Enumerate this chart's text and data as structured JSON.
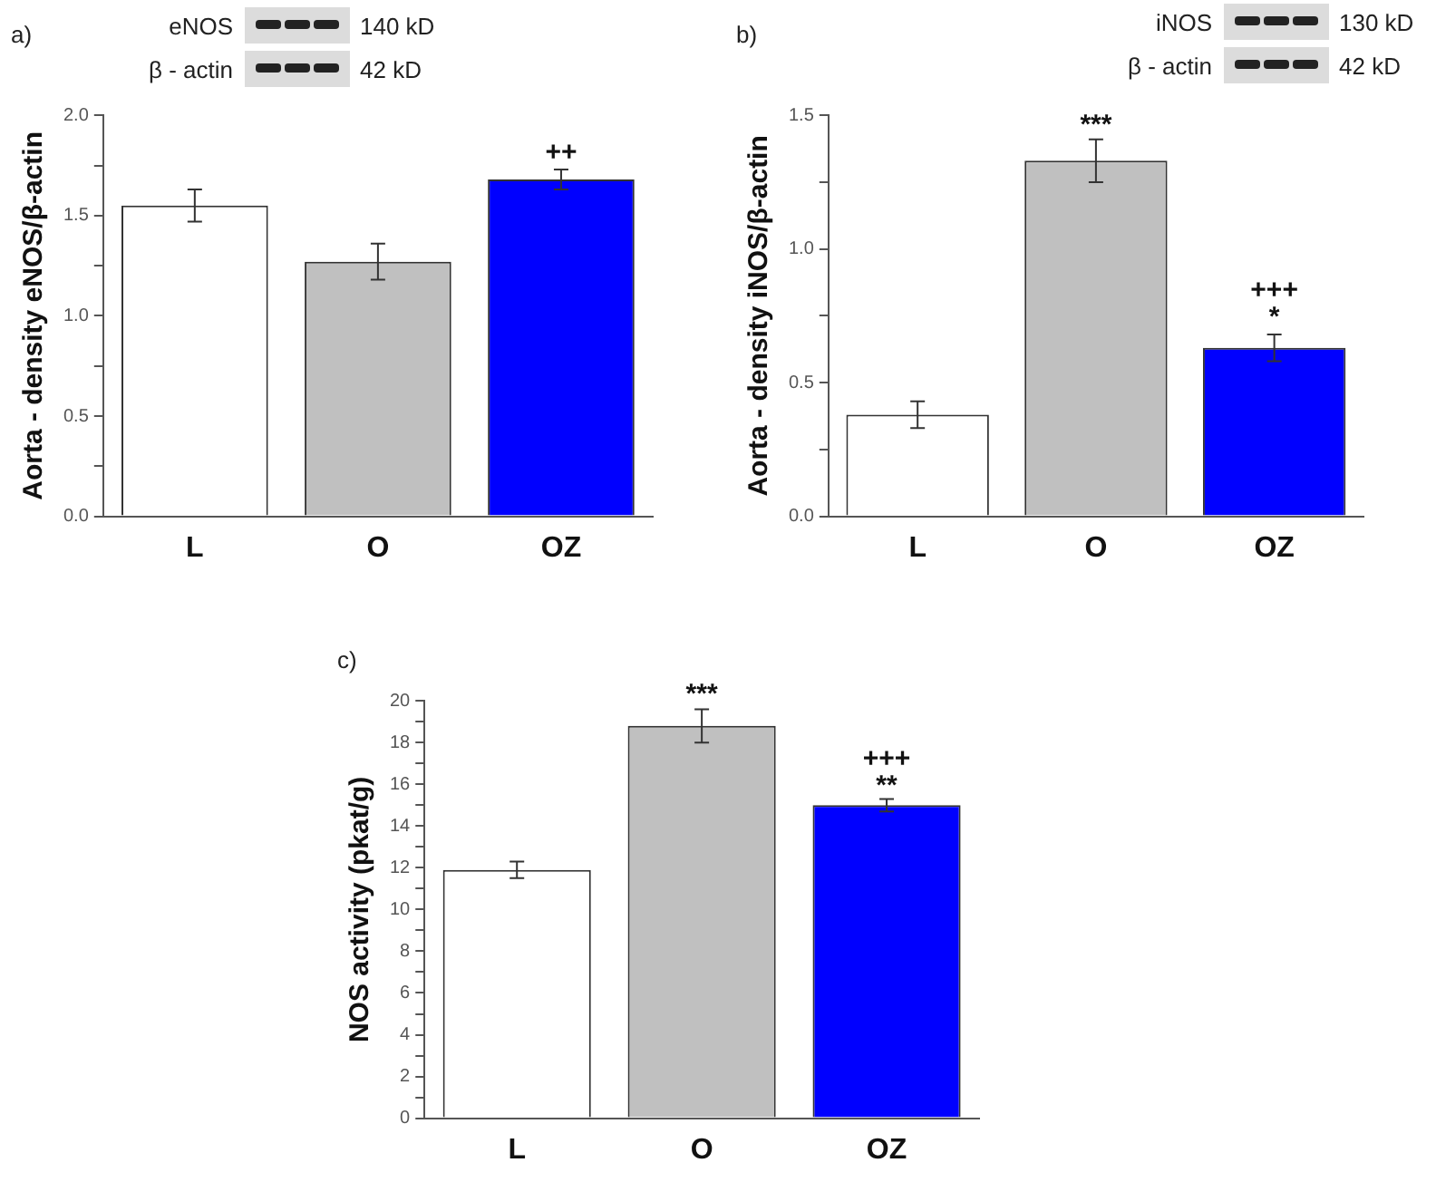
{
  "chart_data": [
    {
      "type": "bar",
      "title": "a)",
      "ylabel": "Aorta - density eNOS/β-actin",
      "categories": [
        "L",
        "O",
        "OZ"
      ],
      "values": [
        1.55,
        1.27,
        1.68
      ],
      "errors": [
        0.08,
        0.09,
        0.05
      ],
      "colors": [
        "#ffffff",
        "#c0c0c0",
        "#0000ff"
      ],
      "ylim": [
        0,
        2.0
      ],
      "yticks": [
        {
          "value": 0,
          "label": "0.0"
        },
        {
          "value": 0.25,
          "label": null
        },
        {
          "value": 0.5,
          "label": "0.5"
        },
        {
          "value": 0.75,
          "label": null
        },
        {
          "value": 1.0,
          "label": "1.0"
        },
        {
          "value": 1.25,
          "label": null
        },
        {
          "value": 1.5,
          "label": "1.5"
        },
        {
          "value": 1.75,
          "label": null
        },
        {
          "value": 2.0,
          "label": "2.0"
        }
      ],
      "grid": false,
      "legend": false,
      "annotations": [
        "eNOS",
        "140 kD",
        "β - actin",
        "42 kD",
        {
          "text": "++",
          "x": "OZ",
          "y": 1.77
        }
      ]
    },
    {
      "type": "bar",
      "title": "b)",
      "ylabel": "Aorta - density iNOS/β-actin",
      "categories": [
        "L",
        "O",
        "OZ"
      ],
      "values": [
        0.38,
        1.33,
        0.63
      ],
      "errors": [
        0.05,
        0.08,
        0.05
      ],
      "colors": [
        "#ffffff",
        "#c0c0c0",
        "#0000ff"
      ],
      "ylim": [
        0,
        1.5
      ],
      "yticks": [
        {
          "value": 0,
          "label": "0.0"
        },
        {
          "value": 0.25,
          "label": null
        },
        {
          "value": 0.5,
          "label": "0.5"
        },
        {
          "value": 0.75,
          "label": null
        },
        {
          "value": 1.0,
          "label": "1.0"
        },
        {
          "value": 1.25,
          "label": null
        },
        {
          "value": 1.5,
          "label": "1.5"
        }
      ],
      "grid": false,
      "legend": false,
      "annotations": [
        "iNOS",
        "130 kD",
        "β - actin",
        "42 kD",
        {
          "text": "***",
          "x": "O",
          "y": 1.43
        },
        {
          "text": "+++\n*",
          "x": "OZ",
          "y": 0.71
        }
      ]
    },
    {
      "type": "bar",
      "title": "c)",
      "ylabel": "NOS activity (pkat/g)",
      "categories": [
        "L",
        "O",
        "OZ"
      ],
      "values": [
        11.9,
        18.8,
        15.0
      ],
      "errors": [
        0.4,
        0.8,
        0.3
      ],
      "colors": [
        "#ffffff",
        "#c0c0c0",
        "#0000ff"
      ],
      "ylim": [
        0,
        20
      ],
      "yticks": [
        0,
        {
          "value": 1,
          "label": null
        },
        2,
        {
          "value": 3,
          "label": null
        },
        4,
        {
          "value": 5,
          "label": null
        },
        6,
        {
          "value": 7,
          "label": null
        },
        8,
        {
          "value": 9,
          "label": null
        },
        10,
        {
          "value": 11,
          "label": null
        },
        12,
        {
          "value": 13,
          "label": null
        },
        14,
        {
          "value": 15,
          "label": null
        },
        16,
        {
          "value": 17,
          "label": null
        },
        18,
        {
          "value": 19,
          "label": null
        },
        20
      ],
      "grid": false,
      "legend": false,
      "annotations": [
        {
          "text": "***",
          "x": "O",
          "y": 19.9
        },
        {
          "text": "+++\n**",
          "x": "OZ",
          "y": 15.5
        }
      ]
    }
  ]
}
